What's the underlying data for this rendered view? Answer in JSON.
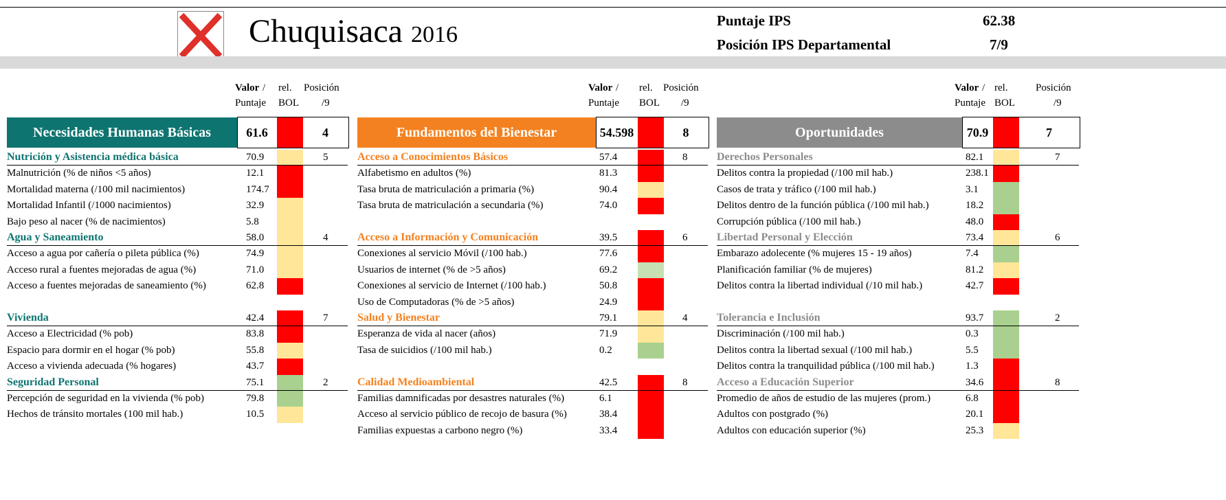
{
  "header": {
    "title": "Chuquisaca",
    "year": "2016",
    "score_label": "Puntaje IPS",
    "score": "62.38",
    "rank_label": "Posición IPS Departamental",
    "rank": "7/9"
  },
  "column_headers": {
    "valor": "Valor",
    "slash": "/",
    "puntaje": "Puntaje",
    "rel": "rel.",
    "bol": "BOL",
    "posicion": "Posición",
    "of": "/9"
  },
  "dimensions": [
    {
      "name": "Necesidades Humanas Básicas",
      "value": "61.6",
      "color": "#ff0000",
      "position": "4",
      "theme_color": "#0e7470",
      "components": [
        {
          "name": "Nutrición y Asistencia médica básica",
          "value": "70.9",
          "color": "#ffe699",
          "position": "5",
          "indicators": [
            {
              "name": "Malnutrición (% de niños <5 años)",
              "value": "12.1",
              "color": "#ff0000"
            },
            {
              "name": "Mortalidad materna (/100 mil nacimientos)",
              "value": "174.7",
              "color": "#ff0000"
            },
            {
              "name": "Mortalidad Infantil (/1000 nacimientos)",
              "value": "32.9",
              "color": "#ffe699"
            },
            {
              "name": "Bajo peso al nacer (% de nacimientos)",
              "value": "5.8",
              "color": "#ffe699"
            }
          ]
        },
        {
          "name": "Agua y Saneamiento",
          "value": "58.0",
          "color": "#ffe699",
          "position": "4",
          "indicators": [
            {
              "name": "Acceso a agua por cañería o pileta pública (%)",
              "value": "74.9",
              "color": "#ffe699"
            },
            {
              "name": "Acceso rural a fuentes mejoradas  de agua (%)",
              "value": "71.0",
              "color": "#ffe699"
            },
            {
              "name": "Acceso a fuentes mejoradas de saneamiento (%)",
              "value": "62.8",
              "color": "#ff0000"
            }
          ]
        },
        {
          "name": "Vivienda",
          "value": "42.4",
          "color": "#ff0000",
          "position": "7",
          "indicators": [
            {
              "name": "Acceso a Electricidad (% pob)",
              "value": "83.8",
              "color": "#ff0000"
            },
            {
              "name": "Espacio para dormir en el hogar (% pob)",
              "value": "55.8",
              "color": "#ffe699"
            },
            {
              "name": "Acceso a vivienda adecuada (% hogares)",
              "value": "43.7",
              "color": "#ff0000"
            }
          ]
        },
        {
          "name": "Seguridad Personal",
          "value": "75.1",
          "color": "#a9d08e",
          "position": "2",
          "indicators": [
            {
              "name": "Percepción de seguridad en la vivienda (% pob)",
              "value": "79.8",
              "color": "#a9d08e"
            },
            {
              "name": "Hechos de tránsito mortales (100 mil hab.)",
              "value": "10.5",
              "color": "#ffe699"
            }
          ]
        }
      ]
    },
    {
      "name": "Fundamentos del Bienestar",
      "value": "54.598",
      "color": "#ff0000",
      "position": "8",
      "theme_color": "#f4811f",
      "components": [
        {
          "name": "Acceso a Conocimientos Básicos",
          "value": "57.4",
          "color": "#ff0000",
          "position": "8",
          "indicators": [
            {
              "name": "Alfabetismo en adultos (%)",
              "value": "81.3",
              "color": "#ff0000"
            },
            {
              "name": "Tasa bruta de matriculación a primaria (%)",
              "value": "90.4",
              "color": "#ffe699"
            },
            {
              "name": "Tasa bruta de matriculación a secundaria (%)",
              "value": "74.0",
              "color": "#ff0000"
            }
          ]
        },
        {
          "name": "Acceso a Información y Comunicación",
          "value": "39.5",
          "color": "#ff0000",
          "position": "6",
          "indicators": [
            {
              "name": "Conexiones al servicio Móvil (/100 hab.)",
              "value": "77.6",
              "color": "#ff0000"
            },
            {
              "name": "Usuarios de internet (% de >5 años)",
              "value": "69.2",
              "color": "#c6e0b4"
            },
            {
              "name": "Conexiones al servicio de Internet (/100 hab.)",
              "value": "50.8",
              "color": "#ff0000"
            },
            {
              "name": "Uso de Computadoras (% de >5 años)",
              "value": "24.9",
              "color": "#ff0000"
            }
          ]
        },
        {
          "name": "Salud y Bienestar",
          "value": "79.1",
          "color": "#ffe699",
          "position": "4",
          "indicators": [
            {
              "name": "Esperanza de vida al nacer (años)",
              "value": "71.9",
              "color": "#ffe699"
            },
            {
              "name": "Tasa de suicidios (/100 mil hab.)",
              "value": "0.2",
              "color": "#a9d08e"
            }
          ]
        },
        {
          "name": "Calidad Medioambiental",
          "value": "42.5",
          "color": "#ff0000",
          "position": "8",
          "indicators": [
            {
              "name": "Familias damnificadas por desastres naturales (%)",
              "value": "6.1",
              "color": "#ff0000"
            },
            {
              "name": "Acceso al servicio público de recojo de basura (%)",
              "value": "38.4",
              "color": "#ff0000"
            },
            {
              "name": "Familias expuestas a carbono negro (%)",
              "value": "33.4",
              "color": "#ff0000"
            }
          ]
        }
      ]
    },
    {
      "name": "Oportunidades",
      "value": "70.9",
      "color": "#ff0000",
      "position": "7",
      "theme_color": "#8c8c8c",
      "components": [
        {
          "name": "Derechos Personales",
          "value": "82.1",
          "color": "#ffe699",
          "position": "7",
          "indicators": [
            {
              "name": "Delitos contra la propiedad (/100 mil hab.)",
              "value": "238.1",
              "color": "#ff0000"
            },
            {
              "name": "Casos de trata y tráfico (/100 mil hab.)",
              "value": "3.1",
              "color": "#a9d08e"
            },
            {
              "name": "Delitos dentro de la función pública (/100 mil hab.)",
              "value": "18.2",
              "color": "#a9d08e"
            },
            {
              "name": "Corrupción pública (/100 mil hab.)",
              "value": "48.0",
              "color": "#ff0000"
            }
          ]
        },
        {
          "name": "Libertad Personal y Elección",
          "value": "73.4",
          "color": "#ffe699",
          "position": "6",
          "indicators": [
            {
              "name": "Embarazo adolecente (% mujeres 15 - 19 años)",
              "value": "7.4",
              "color": "#a9d08e"
            },
            {
              "name": "Planificación familiar (% de mujeres)",
              "value": "81.2",
              "color": "#ffe699"
            },
            {
              "name": "Delitos contra la libertad individual (/10 mil hab.)",
              "value": "42.7",
              "color": "#ff0000"
            }
          ]
        },
        {
          "name": "Tolerancia e Inclusión",
          "value": "93.7",
          "color": "#a9d08e",
          "position": "2",
          "indicators": [
            {
              "name": "Discriminación (/100 mil hab.)",
              "value": "0.3",
              "color": "#a9d08e"
            },
            {
              "name": "Delitos contra la libertad sexual (/100 mil hab.)",
              "value": "5.5",
              "color": "#a9d08e"
            },
            {
              "name": "Delitos contra la tranquilidad pública (/100 mil hab.)",
              "value": "1.3",
              "color": "#ff0000"
            }
          ]
        },
        {
          "name": "Acceso a Educación Superior",
          "value": "34.6",
          "color": "#ff0000",
          "position": "8",
          "indicators": [
            {
              "name": "Promedio de años de estudio de las mujeres (prom.)",
              "value": "6.8",
              "color": "#ff0000"
            },
            {
              "name": "Adultos con postgrado (%)",
              "value": "20.1",
              "color": "#ff0000"
            },
            {
              "name": "Adultos con educación superior (%)",
              "value": "25.3",
              "color": "#ffe699"
            }
          ]
        }
      ]
    }
  ]
}
